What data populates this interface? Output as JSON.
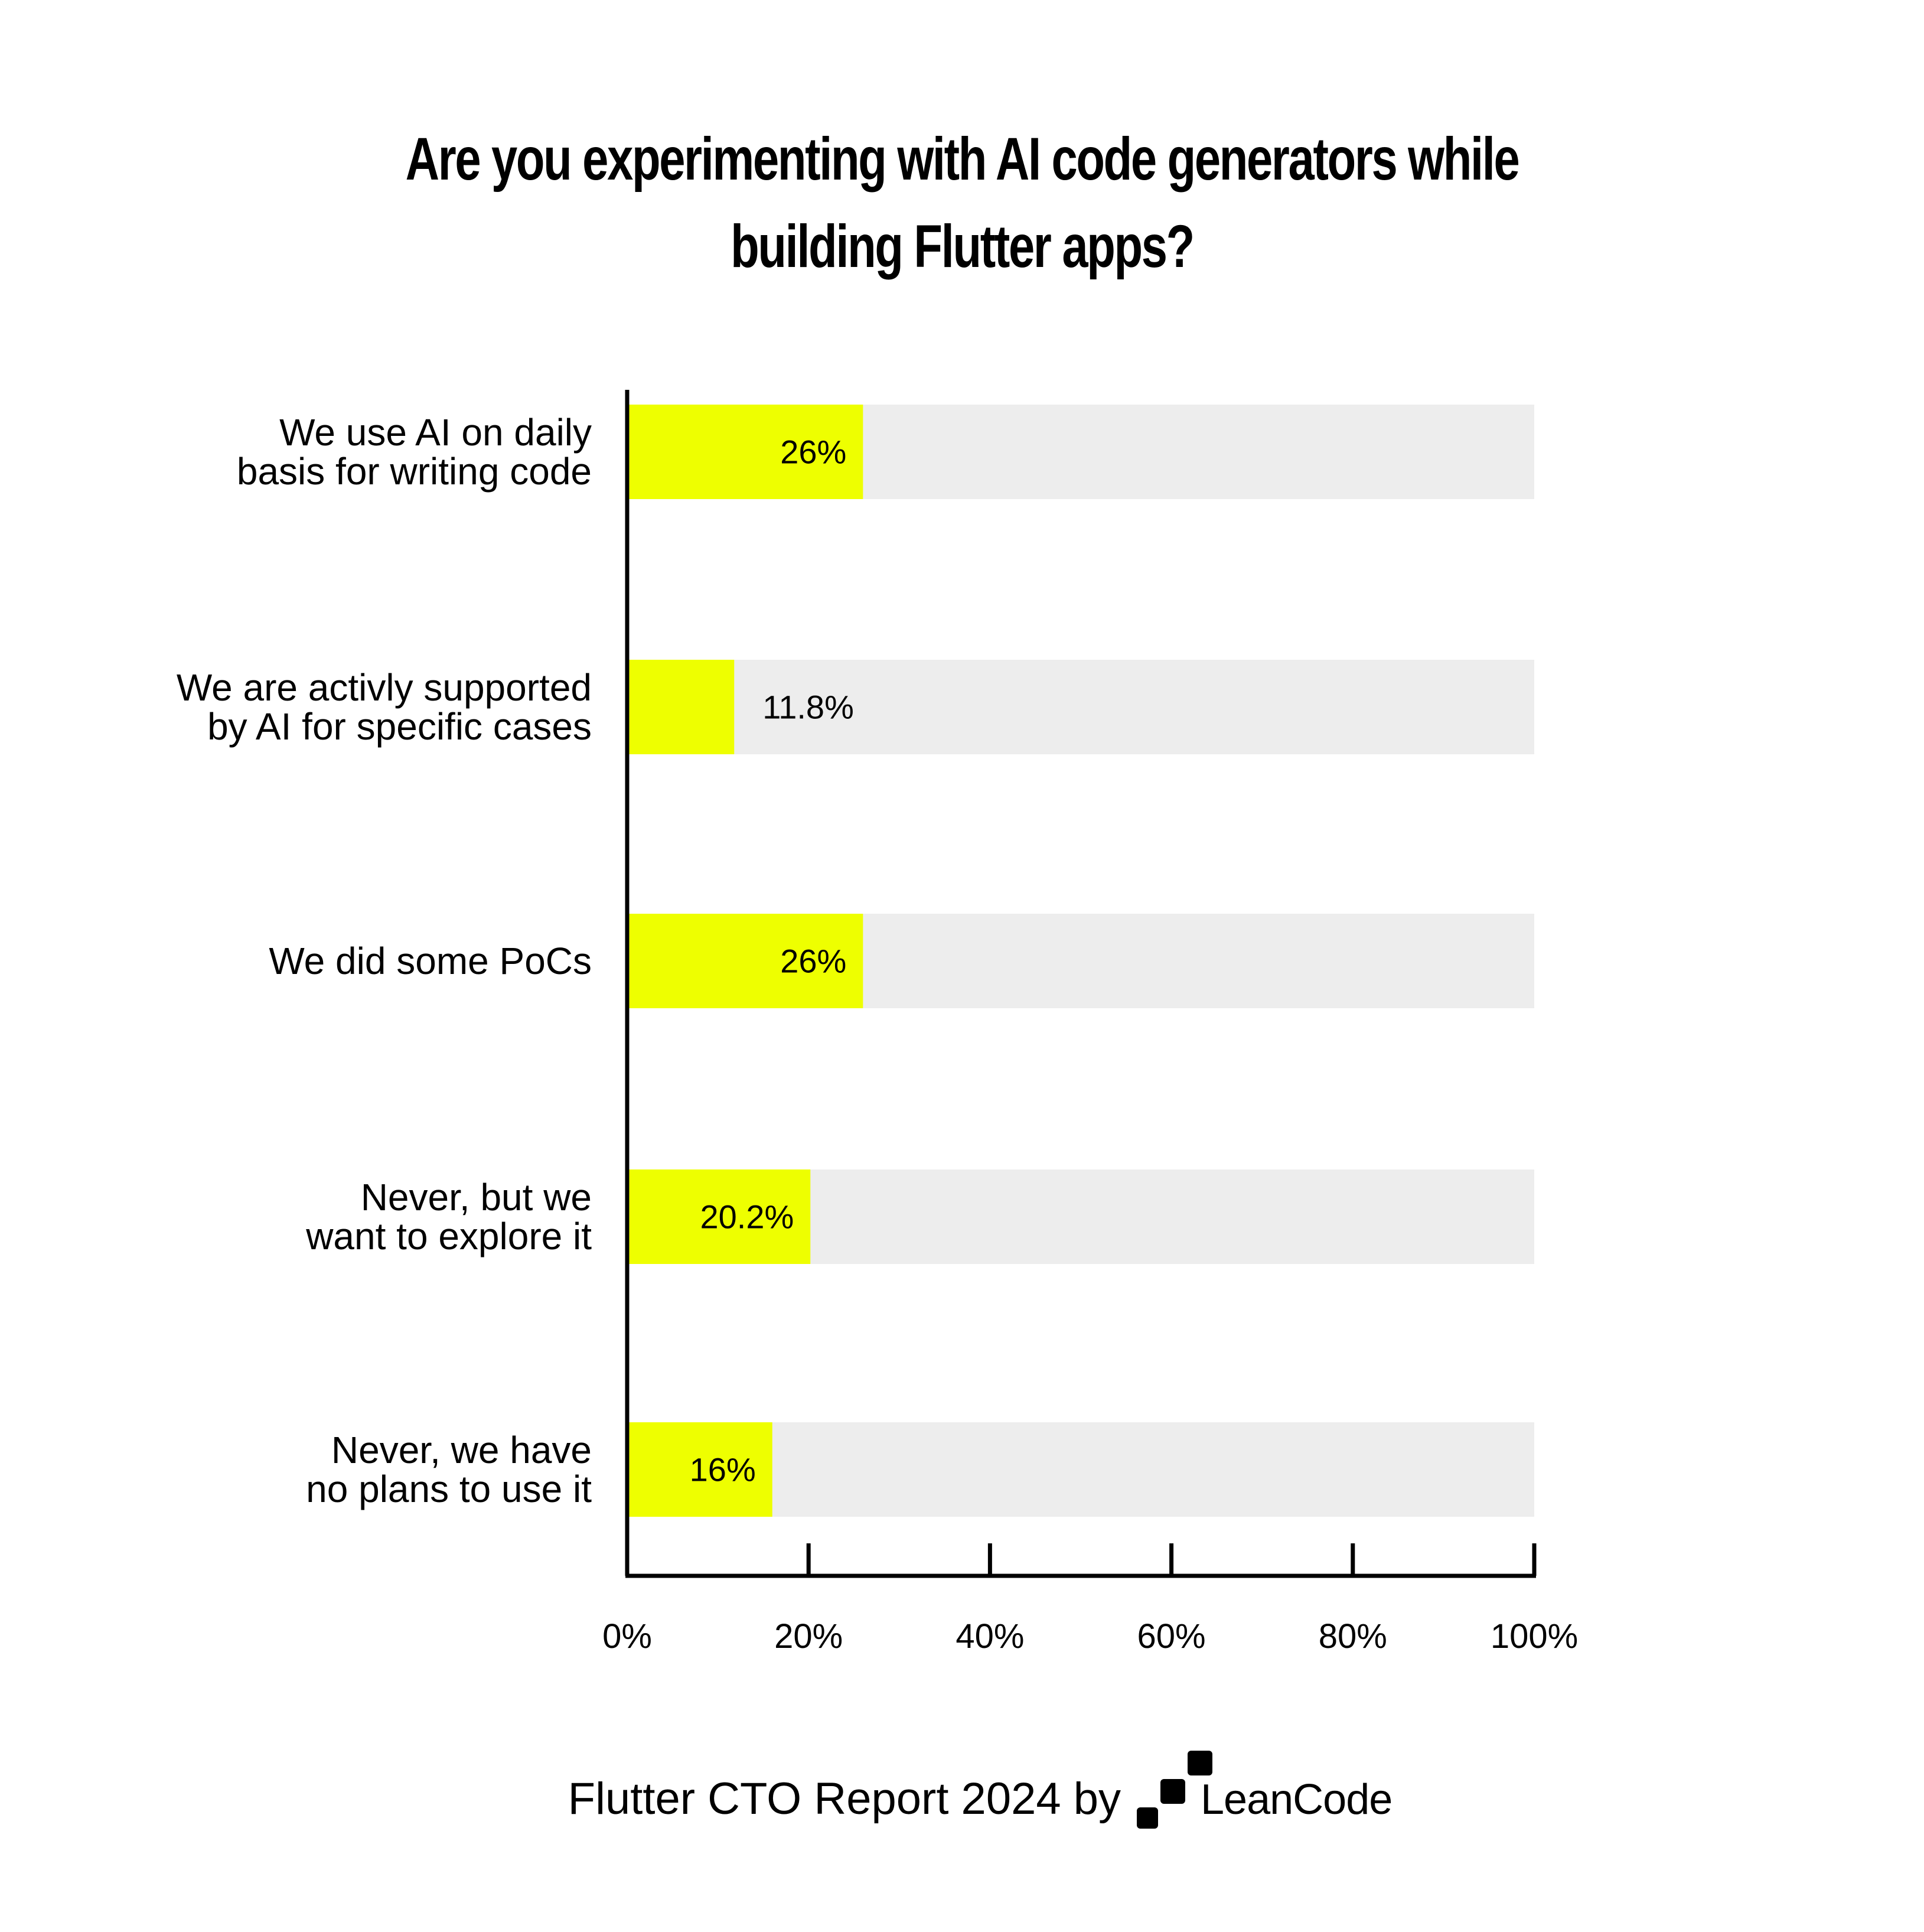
{
  "title": {
    "line1": "Are you experimenting with AI code generators while",
    "line2": "building Flutter apps?"
  },
  "colors": {
    "bar_fill": "#EEFF00",
    "track": "#EDEDED",
    "axis": "#000000",
    "text": "#000000"
  },
  "chart_data": {
    "type": "bar",
    "orientation": "horizontal",
    "categories": [
      [
        "We use AI on daily",
        "basis for writing code"
      ],
      [
        "We are activly supported",
        "by AI for specific cases"
      ],
      [
        "We did some PoCs"
      ],
      [
        "Never, but we",
        "want to explore it"
      ],
      [
        "Never, we have",
        "no plans to use it"
      ]
    ],
    "values": [
      26,
      11.8,
      26,
      20.2,
      16
    ],
    "data_labels": [
      "26%",
      "11.8%",
      "26%",
      "20.2%",
      "16%"
    ],
    "xlim": [
      0,
      100
    ],
    "xticks": [
      "0%",
      "20%",
      "40%",
      "60%",
      "80%",
      "100%"
    ],
    "xlabel": "",
    "ylabel": ""
  },
  "footer": {
    "text": "Flutter CTO Report 2024 by",
    "logo_text": "LeanCode"
  }
}
